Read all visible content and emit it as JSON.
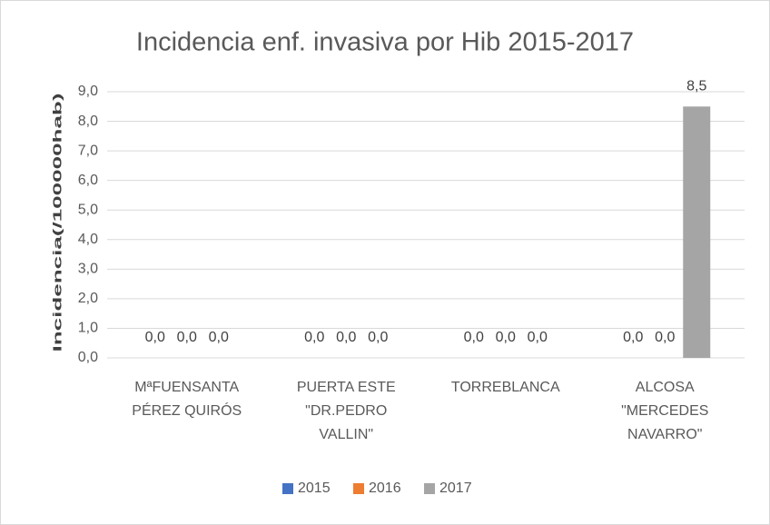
{
  "chart_data": {
    "type": "bar",
    "title": "Incidencia enf. invasiva por Hib 2015-2017",
    "y_label": "Incidencia(/100000hab)",
    "categories": [
      [
        "MªFUENSANTA",
        "PÉREZ QUIRÓS"
      ],
      [
        "PUERTA ESTE",
        "\"DR.PEDRO",
        "VALLIN\""
      ],
      [
        "TORREBLANCA"
      ],
      [
        "ALCOSA",
        "\"MERCEDES",
        "NAVARRO\""
      ]
    ],
    "series": [
      {
        "name": "2015",
        "color": "#4472c4",
        "values": [
          0,
          0,
          0,
          0
        ],
        "value_labels": [
          "0,0",
          "0,0",
          "0,0",
          "0,0"
        ]
      },
      {
        "name": "2016",
        "color": "#ed7d31",
        "values": [
          0,
          0,
          0,
          0
        ],
        "value_labels": [
          "0,0",
          "0,0",
          "0,0",
          "0,0"
        ]
      },
      {
        "name": "2017",
        "color": "#a5a5a5",
        "values": [
          0,
          0,
          0,
          8.5
        ],
        "value_labels": [
          "0,0",
          "0,0",
          "0,0",
          "8,5"
        ]
      }
    ],
    "ylim": [
      0,
      9
    ],
    "yticks": [
      {
        "value": 0,
        "label": "0,0"
      },
      {
        "value": 1,
        "label": "1,0"
      },
      {
        "value": 2,
        "label": "2,0"
      },
      {
        "value": 3,
        "label": "3,0"
      },
      {
        "value": 4,
        "label": "4,0"
      },
      {
        "value": 5,
        "label": "5,0"
      },
      {
        "value": 6,
        "label": "6,0"
      },
      {
        "value": 7,
        "label": "7,0"
      },
      {
        "value": 8,
        "label": "8,0"
      },
      {
        "value": 9,
        "label": "9,0"
      }
    ],
    "grid": true,
    "legend": "bottom"
  }
}
